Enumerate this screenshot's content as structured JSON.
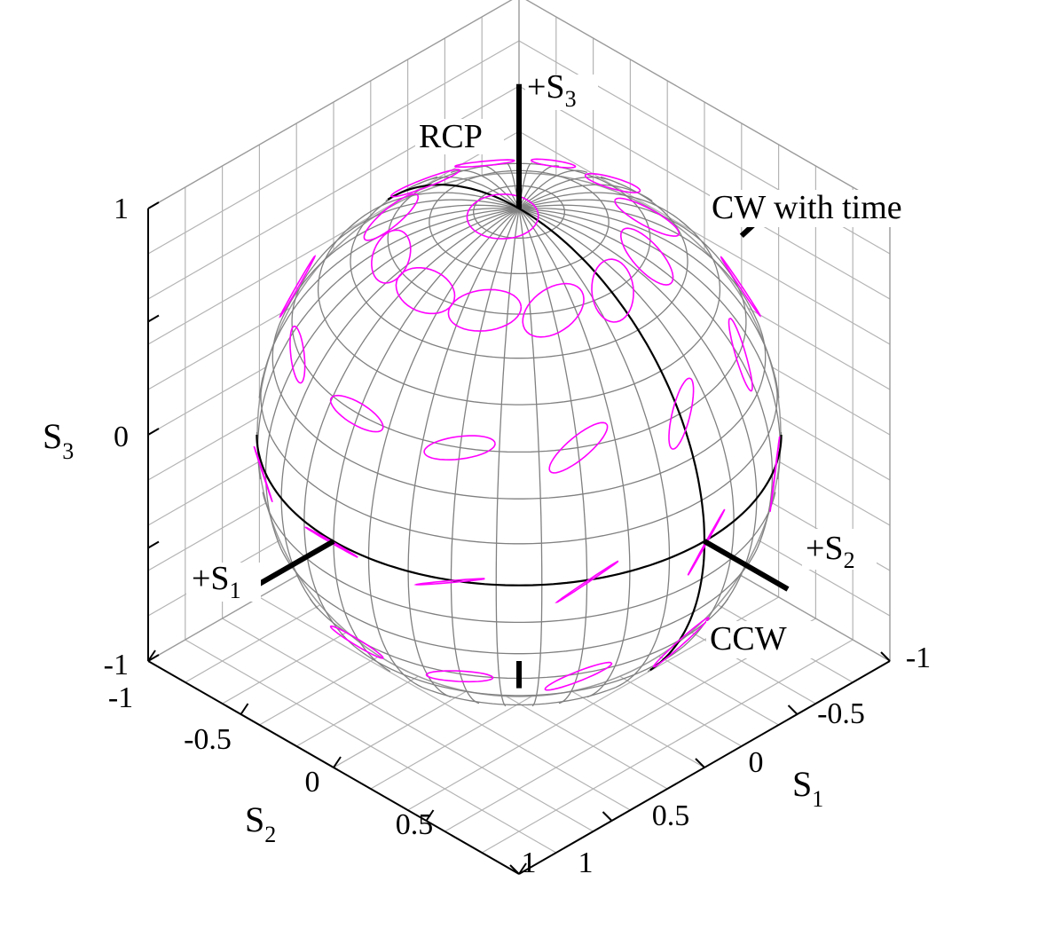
{
  "figure": {
    "type": "poincare-sphere",
    "colors": {
      "ellipse": "#ff00ff",
      "mesh": "#808080",
      "great_circle": "#000000",
      "axis_rod": "#000000",
      "box_grid": "#b4b4b4",
      "box_edge": "#000000"
    }
  },
  "axes": {
    "s1": {
      "label_main": "S",
      "label_sub": "1",
      "range": [
        -1,
        1
      ],
      "ticks": [
        "-1",
        "-0.5",
        "0",
        "0.5",
        "1"
      ]
    },
    "s2": {
      "label_main": "S",
      "label_sub": "2",
      "range": [
        -1,
        1
      ],
      "ticks": [
        "-1",
        "-0.5",
        "0",
        "0.5",
        "1"
      ]
    },
    "s3": {
      "label_main": "S",
      "label_sub": "3",
      "range": [
        -1,
        1
      ],
      "ticks": [
        "1",
        "0",
        "-1"
      ]
    }
  },
  "annotations": {
    "plus_s3": {
      "main": "+S",
      "sub": "3"
    },
    "plus_s1": {
      "main": "+S",
      "sub": "1"
    },
    "plus_s2": {
      "main": "+S",
      "sub": "2"
    },
    "rcp": "RCP",
    "cw": "CW with time",
    "ccw": "CCW"
  },
  "sphere": {
    "radius": 1,
    "mesh_latitudes_deg": [
      -80,
      -70,
      -60,
      -50,
      -40,
      -30,
      -20,
      -10,
      0,
      10,
      20,
      30,
      40,
      50,
      60,
      70,
      80
    ],
    "mesh_longitude_step_deg": 10,
    "ellipse_latitudes_deg": [
      -60,
      -30,
      0,
      30,
      60,
      85
    ],
    "ellipse_longitude_step_deg": 30
  }
}
